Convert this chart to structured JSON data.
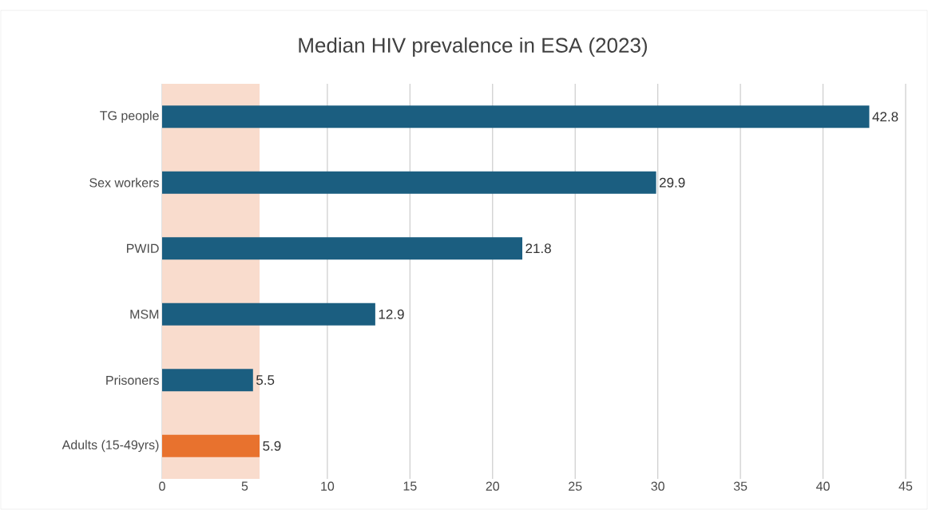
{
  "chart_data": {
    "type": "bar",
    "orientation": "horizontal",
    "title": "Median HIV prevalence in ESA (2023)",
    "categories": [
      "TG people",
      "Sex workers",
      "PWID",
      "MSM",
      "Prisoners",
      "Adults (15-49yrs)"
    ],
    "values": [
      42.8,
      29.9,
      21.8,
      12.9,
      5.5,
      5.9
    ],
    "colors": [
      "#1b5e80",
      "#1b5e80",
      "#1b5e80",
      "#1b5e80",
      "#1b5e80",
      "#e8722e"
    ],
    "xlim": [
      0,
      45
    ],
    "xticks": [
      0,
      5,
      10,
      15,
      20,
      25,
      30,
      35,
      40,
      45
    ],
    "bands": [
      {
        "axis": "x",
        "from": 0,
        "to": 5.9,
        "color": "#f9dccd"
      }
    ],
    "data_labels": true,
    "grid": "x"
  }
}
